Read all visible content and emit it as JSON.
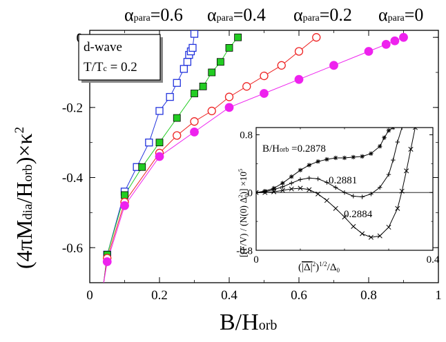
{
  "chart_data": [
    {
      "type": "line",
      "xlabel": "B/H",
      "xlabel_sub": "orb",
      "ylabel": {
        "parts": [
          "(4πM",
          "dia",
          "/H",
          "orb",
          ")×κ",
          "2"
        ]
      },
      "xlim": [
        0,
        1
      ],
      "ylim": [
        -0.7,
        0.02
      ],
      "xticks": [
        0,
        0.2,
        0.4,
        0.6,
        0.8,
        1
      ],
      "xtick_labels": [
        "0",
        "0.2",
        "0.4",
        "0.6",
        "0.8",
        "1"
      ],
      "yticks": [
        0,
        -0.2,
        -0.4,
        -0.6
      ],
      "ytick_labels": [
        "0",
        "-0.2",
        "-0.4",
        "-0.6"
      ],
      "grid": false,
      "legend_box": {
        "line1": "d-wave",
        "line2a": "T/T",
        "line2sub": "c",
        "line2b": " = 0.2"
      },
      "series": [
        {
          "name": "α_para=0.6",
          "label": {
            "alpha": "α",
            "sub": "para",
            "eq": "=0.6"
          },
          "marker": "open-square",
          "color": "#2233dd",
          "x": [
            0.04,
            0.05,
            0.1,
            0.135,
            0.17,
            0.2,
            0.23,
            0.25,
            0.27,
            0.28,
            0.285,
            0.29,
            0.295,
            0.3
          ],
          "y": [
            -0.7,
            -0.62,
            -0.44,
            -0.37,
            -0.3,
            -0.21,
            -0.17,
            -0.13,
            -0.09,
            -0.07,
            -0.05,
            -0.04,
            -0.03,
            0.01
          ]
        },
        {
          "name": "α_para=0.4",
          "label": {
            "alpha": "α",
            "sub": "para",
            "eq": "=0.4"
          },
          "marker": "filled-square",
          "color": "#22cc22",
          "x": [
            0.04,
            0.05,
            0.1,
            0.15,
            0.2,
            0.25,
            0.3,
            0.325,
            0.35,
            0.375,
            0.4,
            0.425
          ],
          "y": [
            -0.7,
            -0.62,
            -0.45,
            -0.37,
            -0.3,
            -0.23,
            -0.16,
            -0.14,
            -0.1,
            -0.07,
            -0.03,
            0.0
          ]
        },
        {
          "name": "α_para=0.2",
          "label": {
            "alpha": "α",
            "sub": "para",
            "eq": "=0.2"
          },
          "marker": "open-circle",
          "color": "#ee2222",
          "x": [
            0.04,
            0.05,
            0.1,
            0.2,
            0.25,
            0.3,
            0.35,
            0.4,
            0.45,
            0.5,
            0.55,
            0.6,
            0.65
          ],
          "y": [
            -0.7,
            -0.63,
            -0.47,
            -0.33,
            -0.28,
            -0.24,
            -0.21,
            -0.17,
            -0.14,
            -0.11,
            -0.08,
            -0.04,
            0.0
          ]
        },
        {
          "name": "α_para=0",
          "label": {
            "alpha": "α",
            "sub": "para",
            "eq": "=0"
          },
          "marker": "filled-circle",
          "color": "#ee22ee",
          "x": [
            0.04,
            0.05,
            0.1,
            0.2,
            0.3,
            0.4,
            0.5,
            0.6,
            0.7,
            0.8,
            0.85,
            0.875,
            0.9
          ],
          "y": [
            -0.7,
            -0.64,
            -0.48,
            -0.34,
            -0.27,
            -0.2,
            -0.16,
            -0.12,
            -0.08,
            -0.04,
            -0.02,
            -0.01,
            0.0
          ]
        }
      ]
    },
    {
      "type": "line",
      "role": "inset",
      "xlim": [
        0,
        0.4
      ],
      "ylim": [
        -0.8,
        0.9
      ],
      "xticks": [
        0,
        0.4
      ],
      "xtick_labels": [
        "0",
        "0.4"
      ],
      "yticks": [
        0.8,
        0,
        -0.8
      ],
      "ytick_labels": [
        "0.8",
        "0",
        "-0.8"
      ],
      "xlabel": {
        "parts": [
          "(",
          "|Δ|",
          "2",
          ")",
          "1/2",
          "/Δ",
          "0"
        ]
      },
      "ylabel": {
        "parts": [
          "[(F/V) / (N(0) Δ",
          "0",
          "2",
          ")] ×10",
          "5"
        ]
      },
      "reference_line_y": 0,
      "series": [
        {
          "name": "B/H_orb=0.2878",
          "label": {
            "prefix": "B/H",
            "sub": "orb",
            "value": " =0.2878"
          },
          "marker": "asterisk",
          "color": "#000000",
          "x": [
            0.0,
            0.02,
            0.04,
            0.06,
            0.08,
            0.1,
            0.12,
            0.14,
            0.16,
            0.18,
            0.2,
            0.22,
            0.24,
            0.26,
            0.28,
            0.29,
            0.3,
            0.31
          ],
          "y": [
            0.0,
            0.02,
            0.06,
            0.13,
            0.22,
            0.31,
            0.38,
            0.43,
            0.46,
            0.48,
            0.48,
            0.49,
            0.5,
            0.54,
            0.64,
            0.76,
            0.86,
            0.9
          ]
        },
        {
          "name": "0.2881",
          "label": {
            "value": "0.2881"
          },
          "marker": "plus",
          "color": "#000000",
          "x": [
            0.0,
            0.02,
            0.04,
            0.06,
            0.08,
            0.1,
            0.12,
            0.14,
            0.16,
            0.18,
            0.2,
            0.22,
            0.24,
            0.26,
            0.28,
            0.3,
            0.31,
            0.32,
            0.33
          ],
          "y": [
            0.0,
            0.01,
            0.04,
            0.08,
            0.13,
            0.18,
            0.2,
            0.19,
            0.14,
            0.07,
            0.0,
            -0.05,
            -0.06,
            -0.02,
            0.07,
            0.25,
            0.45,
            0.7,
            0.9
          ]
        },
        {
          "name": "0.2884",
          "label": {
            "value": "0.2884"
          },
          "marker": "x",
          "color": "#000000",
          "x": [
            0.0,
            0.02,
            0.04,
            0.06,
            0.08,
            0.1,
            0.12,
            0.14,
            0.16,
            0.18,
            0.2,
            0.22,
            0.24,
            0.26,
            0.28,
            0.3,
            0.32,
            0.33,
            0.34,
            0.35,
            0.36
          ],
          "y": [
            0.0,
            0.0,
            0.01,
            0.03,
            0.05,
            0.06,
            0.04,
            -0.02,
            -0.11,
            -0.22,
            -0.34,
            -0.47,
            -0.57,
            -0.62,
            -0.6,
            -0.48,
            -0.22,
            0.02,
            0.3,
            0.6,
            0.9
          ]
        }
      ]
    }
  ]
}
